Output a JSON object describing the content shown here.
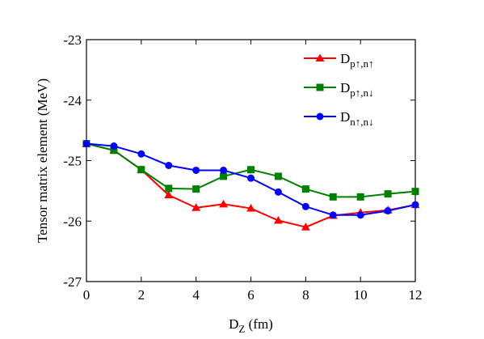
{
  "chart_data": {
    "type": "line",
    "x_label": "DZ (fm)",
    "y_label": "Tensor matrix element (MeV)",
    "x": [
      0,
      1,
      2,
      3,
      4,
      5,
      6,
      7,
      8,
      9,
      10,
      11,
      12
    ],
    "xlim": [
      0,
      12
    ],
    "xticks": [
      0,
      2,
      4,
      6,
      8,
      10,
      12
    ],
    "ylim": [
      -27,
      -23
    ],
    "yticks": [
      -27,
      -26,
      -25,
      -24,
      -23
    ],
    "legend": "upper-right",
    "series": [
      {
        "name": "Dp↑,n↑",
        "color": "#ff0000",
        "marker": "triangle",
        "values": [
          -24.72,
          -24.83,
          -25.15,
          -25.57,
          -25.78,
          -25.72,
          -25.79,
          -25.99,
          -26.1,
          -25.91,
          -25.86,
          -25.82,
          -25.73
        ]
      },
      {
        "name": "Dp↑,n↓",
        "color": "#008000",
        "marker": "square",
        "values": [
          -24.72,
          -24.83,
          -25.15,
          -25.46,
          -25.47,
          -25.26,
          -25.15,
          -25.26,
          -25.47,
          -25.6,
          -25.6,
          -25.55,
          -25.51
        ]
      },
      {
        "name": "Dn↑,n↓",
        "color": "#0000ff",
        "marker": "circle",
        "values": [
          -24.72,
          -24.76,
          -24.89,
          -25.08,
          -25.16,
          -25.16,
          -25.29,
          -25.52,
          -25.76,
          -25.9,
          -25.9,
          -25.83,
          -25.73
        ]
      }
    ]
  }
}
